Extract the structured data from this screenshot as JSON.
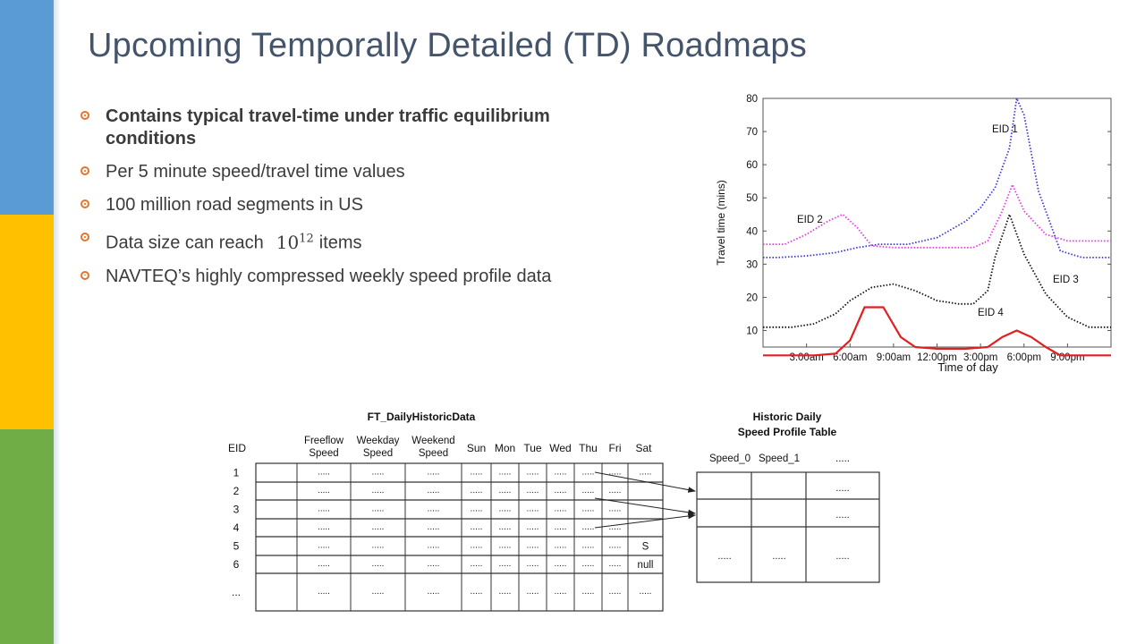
{
  "title": "Upcoming Temporally Detailed (TD) Roadmaps",
  "bullets": {
    "b1": "Contains typical travel-time under traffic equilibrium conditions",
    "b2": "Per 5 minute speed/travel time values",
    "b3": "100 million road segments in US",
    "b4_prefix": "Data size can reach",
    "b4_base": "10",
    "b4_exp": "12",
    "b4_suffix": "items",
    "b5": "NAVTEQ’s highly compressed weekly speed profile data"
  },
  "chart_data": {
    "type": "line",
    "xlabel": "Time of day",
    "ylabel": "Travel time (mins)",
    "x_ticks": [
      "3:00am",
      "6:00am",
      "9:00am",
      "12:00pm",
      "3:00pm",
      "6:00pm",
      "9:00pm"
    ],
    "y_ticks": [
      "10",
      "20",
      "30",
      "40",
      "50",
      "60",
      "70",
      "80"
    ],
    "ylim": [
      5,
      80
    ],
    "x_unit_hours": [
      0,
      24
    ],
    "series": [
      {
        "name": "EID 1",
        "color": "#3a3ad8",
        "style": "dotted",
        "x": [
          0,
          1,
          3,
          5,
          6.5,
          8,
          10,
          12,
          14,
          15,
          16,
          17,
          17.5,
          18,
          19,
          20.5,
          22,
          24
        ],
        "y": [
          32,
          32,
          32.5,
          33.5,
          35,
          36,
          36,
          38,
          43,
          47,
          53,
          65,
          80,
          75,
          52,
          34,
          32,
          32
        ]
      },
      {
        "name": "EID 2",
        "color": "#e53be5",
        "style": "dotted",
        "x": [
          0,
          1.5,
          3,
          4.5,
          5.5,
          6.5,
          7.5,
          9,
          12,
          14.5,
          15.5,
          16.5,
          17.2,
          18,
          19.5,
          21,
          24
        ],
        "y": [
          36,
          36,
          39,
          43,
          45,
          41,
          35.5,
          35,
          35,
          35,
          37,
          46,
          54,
          46,
          39,
          37,
          37
        ]
      },
      {
        "name": "EID 3",
        "color": "#111111",
        "style": "dotted",
        "x": [
          0,
          2,
          3.5,
          5,
          6,
          7.5,
          9,
          10.5,
          12,
          13.5,
          14.5,
          15.5,
          16,
          17,
          18,
          19.5,
          21,
          22.5,
          24
        ],
        "y": [
          11,
          11,
          12,
          15,
          19,
          23,
          24,
          22,
          19,
          18,
          18,
          22,
          32,
          45,
          33,
          21,
          14,
          11,
          11
        ]
      },
      {
        "name": "EID 4",
        "color": "#e02020",
        "style": "solid",
        "x": [
          0,
          2,
          3.5,
          5,
          6,
          6.5,
          7,
          8.3,
          9.5,
          10.5,
          12,
          14,
          15.5,
          16.5,
          17.5,
          18.5,
          19.5,
          20.5,
          24
        ],
        "y": [
          2.5,
          2.5,
          2.5,
          3,
          7,
          12,
          17,
          17,
          8,
          5,
          4.5,
          4.5,
          5,
          8,
          10,
          8,
          5,
          2.5,
          2.5
        ]
      }
    ],
    "annotations": [
      "EID 1",
      "EID 2",
      "EID 3",
      "EID 4"
    ]
  },
  "diagram": {
    "left_title": "FT_DailyHistoricData",
    "left_headers": [
      "EID",
      "Freeflow Speed",
      "Weekday Speed",
      "Weekend Speed",
      "Sun",
      "Mon",
      "Tue",
      "Wed",
      "Thu",
      "Fri",
      "Sat"
    ],
    "rows": [
      "1",
      "2",
      "3",
      "4",
      "5",
      "6",
      "..."
    ],
    "cell": ".....",
    "sat_values": [
      ".....",
      "",
      "",
      "",
      "S",
      "null",
      "....."
    ],
    "right_title_line1": "Historic Daily",
    "right_title_line2": "Speed Profile Table",
    "right_headers": [
      "Speed_0",
      "Speed_1",
      "....."
    ],
    "right_cell": "....."
  }
}
